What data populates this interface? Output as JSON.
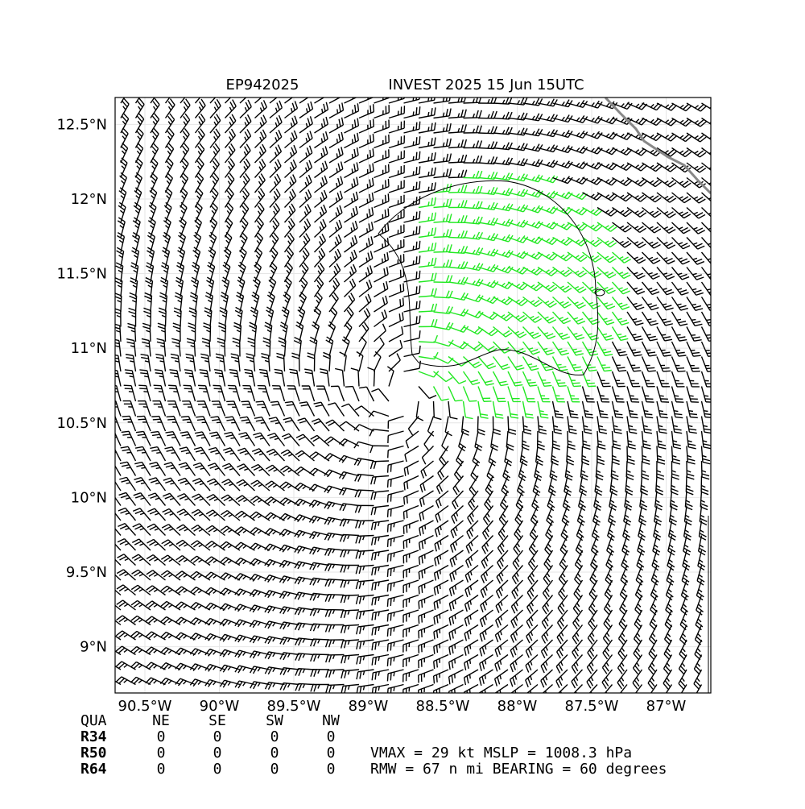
{
  "header": {
    "storm_id": "EP942025",
    "title": "INVEST 2025 15 Jun 15UTC"
  },
  "map": {
    "xlim": [
      -90.7,
      -86.7
    ],
    "ylim": [
      8.69,
      12.68
    ],
    "xticks": [
      {
        "value": -90.5,
        "label": "90.5°W"
      },
      {
        "value": -90,
        "label": "90°W"
      },
      {
        "value": -89.5,
        "label": "89.5°W"
      },
      {
        "value": -89,
        "label": "89°W"
      },
      {
        "value": -88.5,
        "label": "88.5°W"
      },
      {
        "value": -88,
        "label": "88°W"
      },
      {
        "value": -87.5,
        "label": "87.5°W"
      },
      {
        "value": -87,
        "label": "87°W"
      }
    ],
    "yticks": [
      {
        "value": 12.5,
        "label": "12.5°N"
      },
      {
        "value": 12,
        "label": "12°N"
      },
      {
        "value": 11.5,
        "label": "11.5°N"
      },
      {
        "value": 11,
        "label": "11°N"
      },
      {
        "value": 10.5,
        "label": "10.5°N"
      },
      {
        "value": 10,
        "label": "10°N"
      },
      {
        "value": 9.5,
        "label": "9.5°N"
      },
      {
        "value": 9,
        "label": "9°N"
      }
    ]
  },
  "table": {
    "header": [
      "QUA",
      "NE",
      "SE",
      "SW",
      "NW"
    ],
    "rows": [
      [
        "R34",
        "0",
        "0",
        "0",
        "0"
      ],
      [
        "R50",
        "0",
        "0",
        "0",
        "0"
      ],
      [
        "R64",
        "0",
        "0",
        "0",
        "0"
      ]
    ]
  },
  "summary": [
    "VMAX =  29 kt MSLP = 1008.3 hPa",
    "RMW =  67 n mi BEARING =  60 degrees"
  ]
}
